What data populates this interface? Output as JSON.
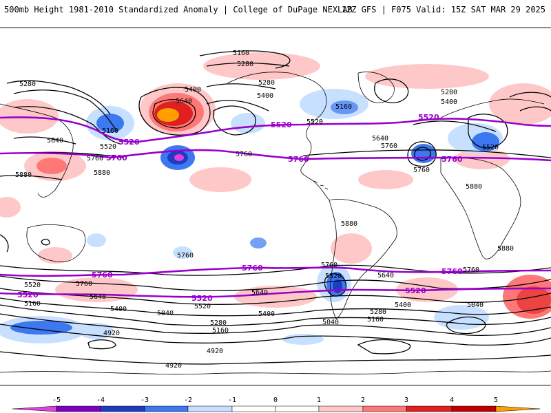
{
  "header": {
    "left_title": "500mb Height 1981-2010 Standardized Anomaly | College of DuPage NEXLAB",
    "right_title": "12Z GFS | F075 Valid: 15Z SAT MAR 29 2025"
  },
  "colors": {
    "neg5": "#e040e0",
    "neg4": "#8000c0",
    "neg3": "#1e3cc0",
    "neg2": "#3c78f0",
    "neg1": "#c8e0ff",
    "pos1": "#ffc8c8",
    "pos2": "#ff7878",
    "pos3": "#e02020",
    "pos4": "#c00000",
    "pos5": "#ffa000",
    "highlight_contour": "#9900cc"
  },
  "map": {
    "black_contours": [
      "4920",
      "5040",
      "5160",
      "5280",
      "5400",
      "5520",
      "5640",
      "5760",
      "5880"
    ],
    "purple_contours": [
      "5520",
      "5760"
    ],
    "labels": {
      "n5160": "5160",
      "n5280": "5280",
      "n5400": "5400",
      "n5520": "5520",
      "n5640": "5640",
      "n5760": "5760",
      "n5880": "5880",
      "n5040": "5040",
      "n4920": "4920"
    }
  },
  "colorbar": {
    "ticks": [
      "-5",
      "-4",
      "-3",
      "-2",
      "-1",
      "0",
      "1",
      "2",
      "3",
      "4",
      "5"
    ]
  }
}
